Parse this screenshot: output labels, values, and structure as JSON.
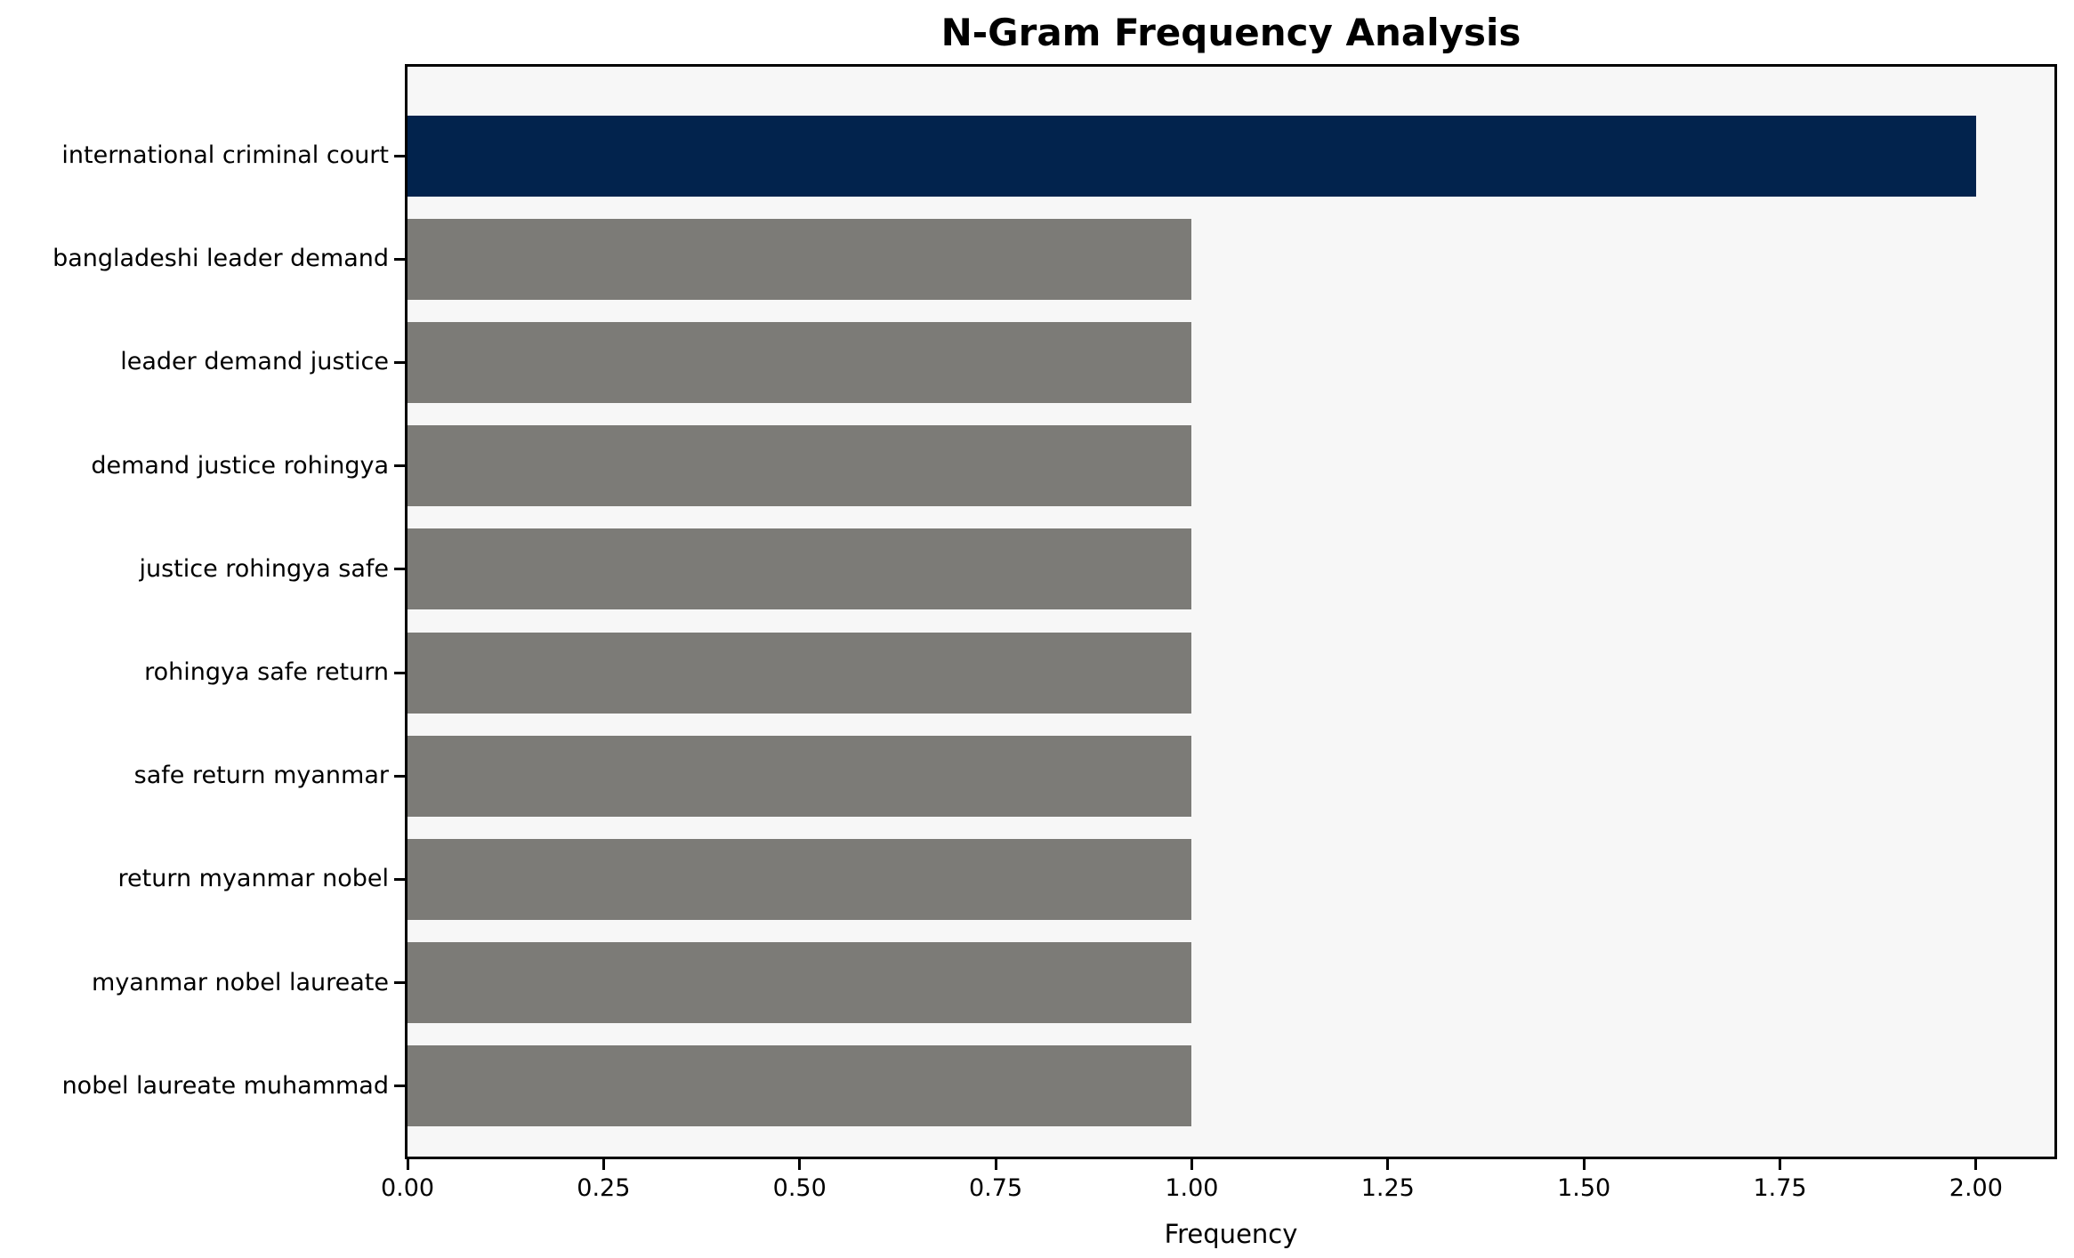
{
  "chart_data": {
    "type": "bar",
    "orientation": "horizontal",
    "title": "N-Gram Frequency Analysis",
    "xlabel": "Frequency",
    "ylabel": "",
    "categories": [
      "international criminal court",
      "bangladeshi leader demand",
      "leader demand justice",
      "demand justice rohingya",
      "justice rohingya safe",
      "rohingya safe return",
      "safe return myanmar",
      "return myanmar nobel",
      "myanmar nobel laureate",
      "nobel laureate muhammad"
    ],
    "values": [
      2,
      1,
      1,
      1,
      1,
      1,
      1,
      1,
      1,
      1
    ],
    "xlim": [
      0,
      2.1
    ],
    "xticks": [
      {
        "value": 0.0,
        "label": "0.00"
      },
      {
        "value": 0.25,
        "label": "0.25"
      },
      {
        "value": 0.5,
        "label": "0.50"
      },
      {
        "value": 0.75,
        "label": "0.75"
      },
      {
        "value": 1.0,
        "label": "1.00"
      },
      {
        "value": 1.25,
        "label": "1.25"
      },
      {
        "value": 1.5,
        "label": "1.50"
      },
      {
        "value": 1.75,
        "label": "1.75"
      },
      {
        "value": 2.0,
        "label": "2.00"
      }
    ],
    "grid": false,
    "legend": null,
    "colors": {
      "highlight_bar": "#02234d",
      "default_bar": "#7c7b77",
      "plot_background": "#f7f7f7",
      "frame": "#000000",
      "text": "#000000"
    },
    "highlight_index": 0
  }
}
